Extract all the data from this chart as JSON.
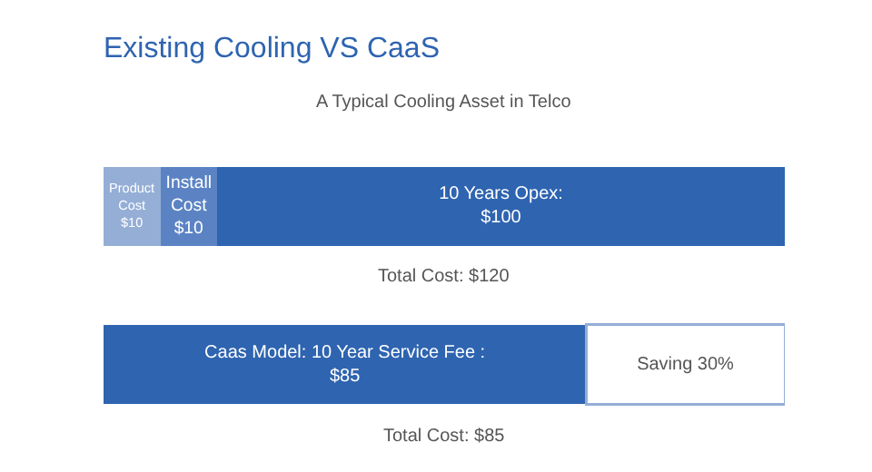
{
  "chart_data": {
    "type": "bar",
    "title": "Existing Cooling VS CaaS",
    "subtitle": "A Typical Cooling Asset in Telco",
    "orientation": "horizontal",
    "stacked": true,
    "categories": [
      null,
      null
    ],
    "xlim": [
      0,
      120
    ],
    "series": [
      {
        "color": "#94aed6",
        "values": [
          10,
          null
        ],
        "value_labels": [
          "Product\nCost\n$10",
          null
        ]
      },
      {
        "color": "#5b83c4",
        "values": [
          10,
          null
        ],
        "value_labels": [
          "Install\nCost\n$10",
          null
        ]
      },
      {
        "color": "#2e64b0",
        "values": [
          100,
          null
        ],
        "value_labels": [
          "10 Years Opex:\n$100",
          null
        ]
      },
      {
        "color": "#2e64b0",
        "values": [
          null,
          85
        ],
        "value_labels": [
          null,
          "Caas Model: 10 Year Service Fee :\n$85"
        ]
      },
      {
        "color": "#ffffff",
        "values": [
          null,
          35
        ],
        "value_labels": [
          null,
          "Saving 30%"
        ]
      }
    ],
    "annotations": [
      "Total Cost: $120",
      "Total Cost: $85"
    ]
  }
}
